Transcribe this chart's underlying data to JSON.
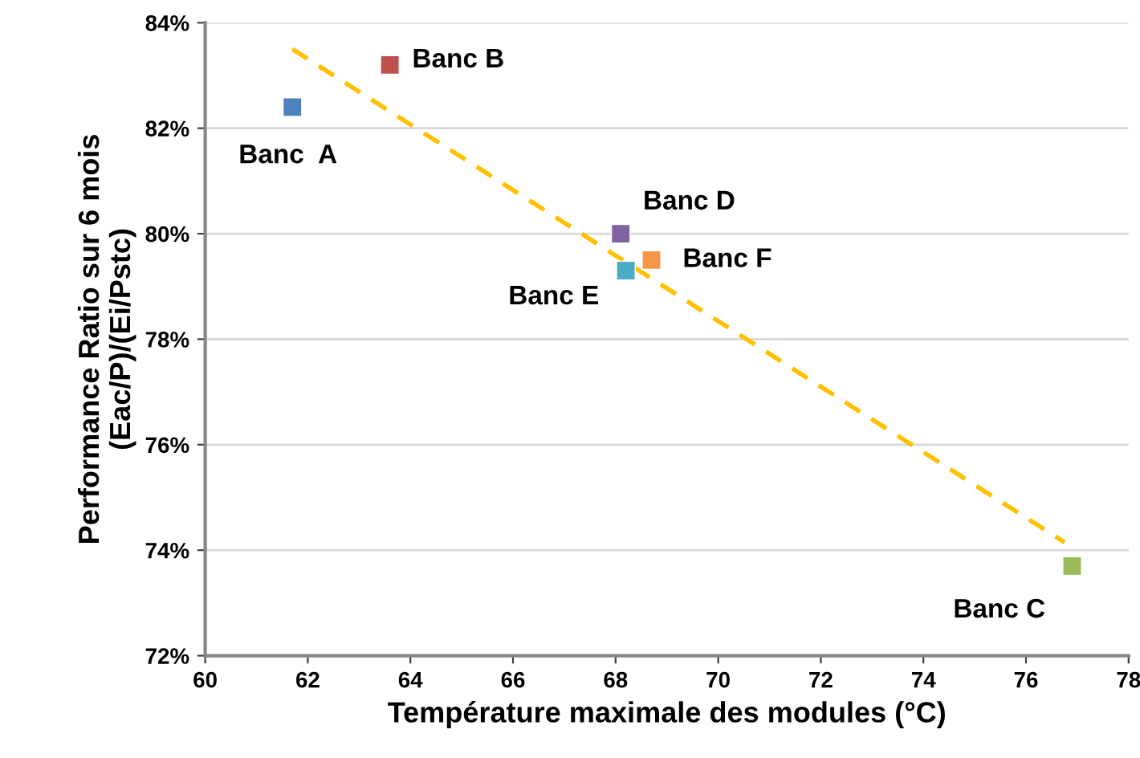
{
  "chart_data": {
    "type": "scatter",
    "xlabel": "Température maximale des modules (°C)",
    "ylabel": "Performance Ratio sur 6 mois\n(Eac/P)/(Ei/Pstc)",
    "marker": "square",
    "grid": "y",
    "legend": false,
    "xlim": [
      60,
      78
    ],
    "xticks": [
      60,
      62,
      64,
      66,
      68,
      70,
      72,
      74,
      76,
      78
    ],
    "ylim": [
      72,
      84
    ],
    "yticks": [
      {
        "value": 72,
        "label": "72%"
      },
      {
        "value": 74,
        "label": "74%"
      },
      {
        "value": 76,
        "label": "76%"
      },
      {
        "value": 78,
        "label": "78%"
      },
      {
        "value": 80,
        "label": "80%"
      },
      {
        "value": 82,
        "label": "82%"
      },
      {
        "value": 84,
        "label": "84%"
      }
    ],
    "series": [
      {
        "name": "Banc  A",
        "color": "#4f81bd",
        "x": [
          61.7
        ],
        "values": [
          82.4
        ]
      },
      {
        "name": "Banc B",
        "color": "#c0504d",
        "x": [
          63.6
        ],
        "values": [
          83.2
        ]
      },
      {
        "name": "Banc D",
        "color": "#8064a2",
        "x": [
          68.1
        ],
        "values": [
          80.0
        ]
      },
      {
        "name": "Banc E",
        "color": "#4bacc6",
        "x": [
          68.2
        ],
        "values": [
          79.3
        ]
      },
      {
        "name": "Banc F",
        "color": "#f79646",
        "x": [
          68.7
        ],
        "values": [
          79.5
        ]
      },
      {
        "name": "Banc C",
        "color": "#9bbb59",
        "x": [
          76.9
        ],
        "values": [
          73.7
        ]
      },
      {
        "type": "line",
        "color": "#ffc000",
        "line_style": "dashed",
        "marker": "none",
        "x": [
          61.7,
          76.75
        ],
        "values": [
          83.5,
          74.15
        ]
      }
    ]
  }
}
